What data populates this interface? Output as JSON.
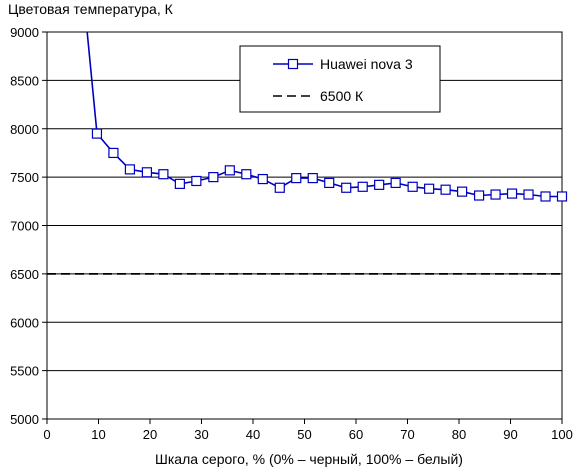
{
  "chart_data": {
    "type": "line",
    "ylabel": "Цветовая температура, К",
    "xlabel": "Шкала серого, % (0% – черный, 100% – белый)",
    "xlim": [
      0,
      100
    ],
    "ylim": [
      5000,
      9000
    ],
    "x_ticks": [
      "0",
      "10",
      "20",
      "30",
      "40",
      "50",
      "60",
      "70",
      "80",
      "90",
      "100"
    ],
    "y_ticks": [
      "5000",
      "5500",
      "6000",
      "6500",
      "7000",
      "7500",
      "8000",
      "8500",
      "9000"
    ],
    "grid": "horizontal",
    "legend_position": "top-right",
    "series": [
      {
        "name": "Huawei nova 3",
        "color": "#0000c0",
        "marker": "square",
        "x": [
          7.7,
          9.7,
          12.9,
          16.1,
          19.4,
          22.6,
          25.8,
          29.0,
          32.3,
          35.5,
          38.7,
          41.9,
          45.2,
          48.4,
          51.6,
          54.8,
          58.1,
          61.3,
          64.5,
          67.7,
          71.0,
          74.2,
          77.4,
          80.6,
          83.9,
          87.1,
          90.3,
          93.5,
          96.8,
          100
        ],
        "y": [
          9050,
          7950,
          7750,
          7580,
          7550,
          7530,
          7430,
          7460,
          7500,
          7570,
          7530,
          7480,
          7390,
          7490,
          7490,
          7440,
          7390,
          7400,
          7420,
          7440,
          7400,
          7380,
          7370,
          7350,
          7310,
          7320,
          7330,
          7320,
          7300,
          7300
        ]
      },
      {
        "name": "6500 К",
        "color": "#000000",
        "dashed": true,
        "x": [
          0,
          100
        ],
        "y": [
          6500,
          6500
        ]
      }
    ]
  }
}
